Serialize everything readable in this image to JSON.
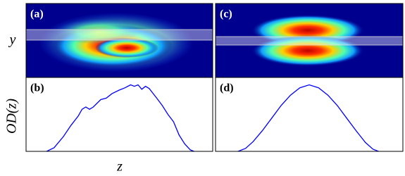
{
  "chart_data": [
    {
      "type": "image",
      "label": "(a)",
      "ylabel": "y"
    },
    {
      "type": "image",
      "label": "(c)"
    },
    {
      "type": "line",
      "label": "(b)",
      "ylabel": "OD(z)",
      "xlabel": "z",
      "color": "#0000ff",
      "xlim": [
        0,
        1
      ],
      "ylim": [
        0,
        1
      ],
      "x": [
        0.11,
        0.15,
        0.2,
        0.24,
        0.28,
        0.3,
        0.32,
        0.34,
        0.36,
        0.4,
        0.43,
        0.46,
        0.5,
        0.53,
        0.56,
        0.58,
        0.6,
        0.62,
        0.64,
        0.66,
        0.7,
        0.73,
        0.76,
        0.79,
        0.82,
        0.85,
        0.88,
        0.9
      ],
      "values": [
        0,
        0.05,
        0.2,
        0.35,
        0.48,
        0.57,
        0.6,
        0.57,
        0.6,
        0.7,
        0.72,
        0.78,
        0.83,
        0.86,
        0.9,
        0.88,
        0.9,
        0.84,
        0.88,
        0.85,
        0.72,
        0.62,
        0.5,
        0.4,
        0.22,
        0.1,
        0.02,
        0
      ]
    },
    {
      "type": "line",
      "label": "(d)",
      "color": "#0000ff",
      "xlim": [
        0,
        1
      ],
      "ylim": [
        0,
        1
      ],
      "x": [
        0.12,
        0.16,
        0.2,
        0.25,
        0.3,
        0.35,
        0.4,
        0.45,
        0.5,
        0.55,
        0.6,
        0.65,
        0.7,
        0.75,
        0.8,
        0.84,
        0.87
      ],
      "values": [
        0,
        0.04,
        0.13,
        0.28,
        0.45,
        0.62,
        0.76,
        0.86,
        0.9,
        0.86,
        0.76,
        0.62,
        0.45,
        0.28,
        0.12,
        0.03,
        0
      ]
    }
  ]
}
